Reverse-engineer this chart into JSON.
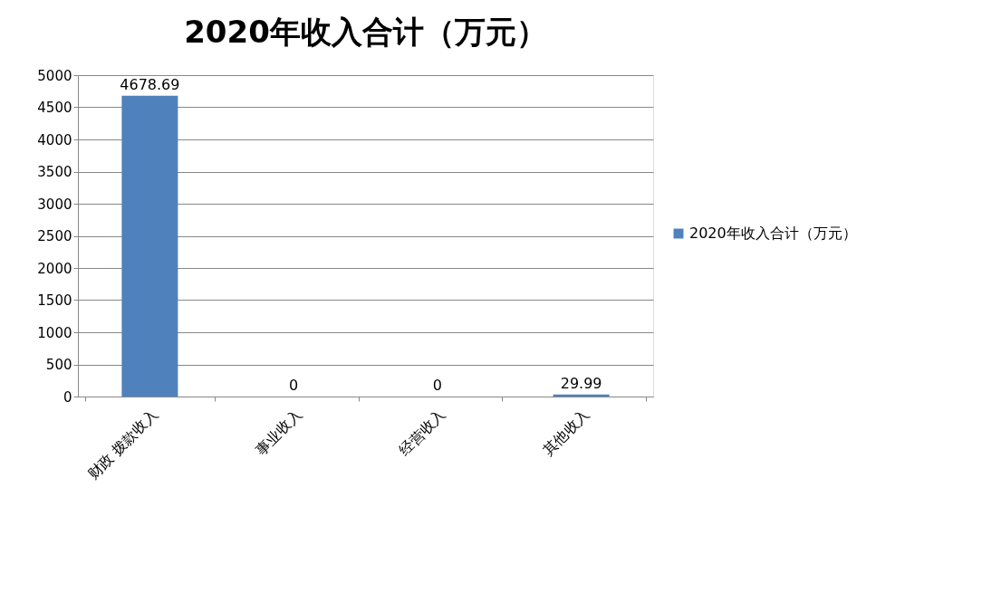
{
  "chart_data": {
    "type": "bar",
    "title": "2020年收入合计（万元）",
    "categories": [
      "财政 拨款收入",
      "事业收入",
      "经营收入",
      "其他收入"
    ],
    "series": [
      {
        "name": "2020年收入合计（万元）",
        "color": "#4f81bd",
        "values": [
          4678.69,
          0,
          0,
          29.99
        ]
      }
    ],
    "ylim": [
      0,
      5000
    ],
    "yticks": [
      0,
      500,
      1000,
      1500,
      2000,
      2500,
      3000,
      3500,
      4000,
      4500,
      5000
    ],
    "grid": "y",
    "legend": "right",
    "data_labels": true
  }
}
